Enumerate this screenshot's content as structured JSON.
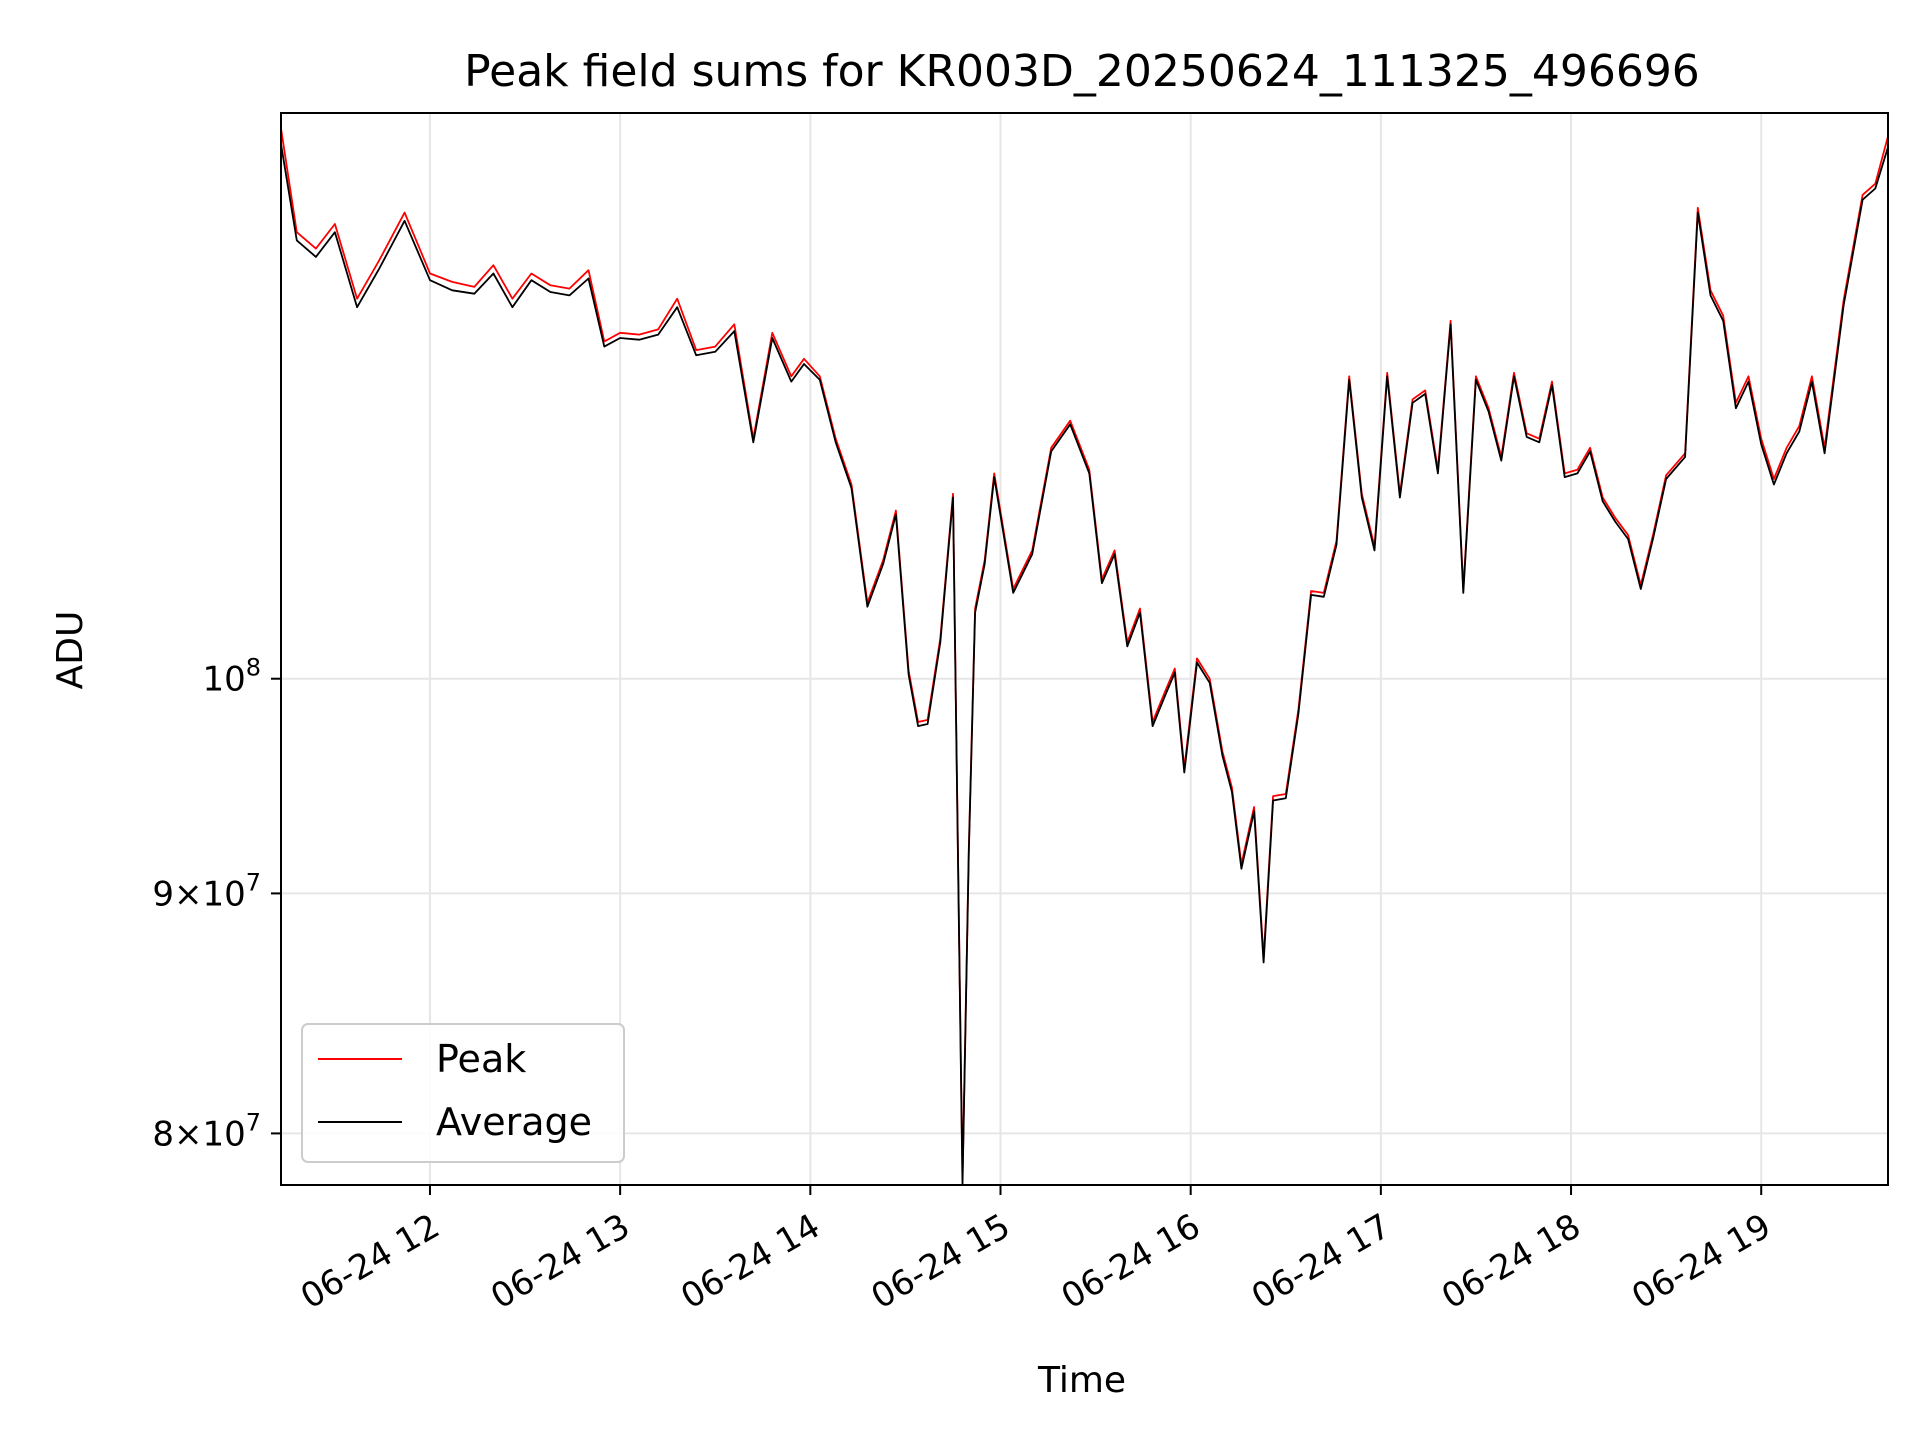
{
  "chart_data": {
    "type": "line",
    "title": "Peak field sums for KR003D_20250624_111325_496696",
    "xlabel": "Time",
    "ylabel": "ADU",
    "y_scale": "log",
    "ylim": [
      78000000,
      132000000
    ],
    "xlim": [
      "2025-06-24 11:13",
      "2025-06-24 19:40"
    ],
    "grid": true,
    "legend_position": "lower-left",
    "x_tick_labels": [
      "06-24 12",
      "06-24 13",
      "06-24 14",
      "06-24 15",
      "06-24 16",
      "06-24 17",
      "06-24 18",
      "06-24 19"
    ],
    "x_ticks": [
      "2025-06-24 12:00",
      "2025-06-24 13:00",
      "2025-06-24 14:00",
      "2025-06-24 15:00",
      "2025-06-24 16:00",
      "2025-06-24 17:00",
      "2025-06-24 18:00",
      "2025-06-24 19:00"
    ],
    "y_ticks": [
      {
        "value": 80000000,
        "mantissa": "8",
        "exponent": "7"
      },
      {
        "value": 90000000,
        "mantissa": "9",
        "exponent": "7"
      },
      {
        "value": 100000000,
        "mantissa": "",
        "exponent": "8"
      }
    ],
    "times_prefix": "2025-06-24",
    "times": [
      "11:13",
      "11:18",
      "11:24",
      "11:30",
      "11:37",
      "11:44",
      "11:52",
      "12:00",
      "12:07",
      "12:14",
      "12:20",
      "12:26",
      "12:32",
      "12:38",
      "12:44",
      "12:50",
      "12:55",
      "13:00",
      "13:06",
      "13:12",
      "13:18",
      "13:24",
      "13:30",
      "13:36",
      "13:42",
      "13:48",
      "13:54",
      "13:58",
      "14:03",
      "14:08",
      "14:13",
      "14:18",
      "14:23",
      "14:27",
      "14:31",
      "14:34",
      "14:37",
      "14:41",
      "14:45",
      "14:48",
      "14:50",
      "14:52",
      "14:55",
      "14:58",
      "15:04",
      "15:10",
      "15:16",
      "15:22",
      "15:28",
      "15:32",
      "15:36",
      "15:40",
      "15:44",
      "15:48",
      "15:52",
      "15:55",
      "15:58",
      "16:02",
      "16:06",
      "16:10",
      "16:13",
      "16:16",
      "16:20",
      "16:23",
      "16:26",
      "16:30",
      "16:34",
      "16:38",
      "16:42",
      "16:46",
      "16:50",
      "16:54",
      "16:58",
      "17:02",
      "17:06",
      "17:10",
      "17:14",
      "17:18",
      "17:22",
      "17:26",
      "17:30",
      "17:34",
      "17:38",
      "17:42",
      "17:46",
      "17:50",
      "17:54",
      "17:58",
      "18:02",
      "18:06",
      "18:10",
      "18:14",
      "18:18",
      "18:22",
      "18:26",
      "18:30",
      "18:36",
      "18:40",
      "18:44",
      "18:48",
      "18:52",
      "18:56",
      "19:00",
      "19:04",
      "19:08",
      "19:12",
      "19:16",
      "19:20",
      "19:26",
      "19:32",
      "19:36",
      "19:40"
    ],
    "series": [
      {
        "name": "Peak",
        "color": "#ff0000",
        "values": [
          131000000,
          124500000,
          123500000,
          125000000,
          120500000,
          122800000,
          125700000,
          122000000,
          121500000,
          121200000,
          122500000,
          120500000,
          122000000,
          121300000,
          121100000,
          122200000,
          118000000,
          118500000,
          118400000,
          118700000,
          120500000,
          117500000,
          117700000,
          119000000,
          112500000,
          118500000,
          116000000,
          117000000,
          116000000,
          112500000,
          110000000,
          103800000,
          106000000,
          108600000,
          100400000,
          97900000,
          98000000,
          102000000,
          109500000,
          78200000,
          92000000,
          103500000,
          106000000,
          110600000,
          104500000,
          106500000,
          112000000,
          113500000,
          110800000,
          105000000,
          106500000,
          101800000,
          103500000,
          97900000,
          99400000,
          100500000,
          95700000,
          101000000,
          100000000,
          96500000,
          94800000,
          91300000,
          93900000,
          87200000,
          94400000,
          94500000,
          98500000,
          104400000,
          104300000,
          107000000,
          116000000,
          109500000,
          106700000,
          116200000,
          109500000,
          114700000,
          115200000,
          110800000,
          119200000,
          104500000,
          116000000,
          114200000,
          111500000,
          116200000,
          112800000,
          112500000,
          115700000,
          110600000,
          110800000,
          112000000,
          109300000,
          108200000,
          107300000,
          104700000,
          107400000,
          110500000,
          111700000,
          126000000,
          121000000,
          119500000,
          114500000,
          116000000,
          112500000,
          110300000,
          112000000,
          113200000,
          116000000,
          112000000,
          120400000,
          126800000,
          127500000,
          130500000
        ]
      },
      {
        "name": "Average",
        "color": "#000000",
        "values": [
          130000000,
          124000000,
          123000000,
          124500000,
          120000000,
          122300000,
          125200000,
          121600000,
          121000000,
          120800000,
          122000000,
          120000000,
          121600000,
          120900000,
          120700000,
          121700000,
          117700000,
          118200000,
          118100000,
          118400000,
          120000000,
          117200000,
          117400000,
          118600000,
          112300000,
          118200000,
          115700000,
          116700000,
          115800000,
          112300000,
          109800000,
          103600000,
          105800000,
          108400000,
          100200000,
          97700000,
          97800000,
          101800000,
          109300000,
          78000000,
          91800000,
          103300000,
          105800000,
          110400000,
          104300000,
          106300000,
          111800000,
          113300000,
          110600000,
          104800000,
          106300000,
          101600000,
          103300000,
          97700000,
          99200000,
          100300000,
          95500000,
          100800000,
          99800000,
          96300000,
          94600000,
          91100000,
          93700000,
          87000000,
          94200000,
          94300000,
          98300000,
          104200000,
          104100000,
          106800000,
          115800000,
          109300000,
          106500000,
          116000000,
          109300000,
          114500000,
          115000000,
          110600000,
          119000000,
          104300000,
          115800000,
          114000000,
          111300000,
          116000000,
          112600000,
          112300000,
          115500000,
          110400000,
          110600000,
          111800000,
          109100000,
          108000000,
          107100000,
          104500000,
          107200000,
          110300000,
          111500000,
          125700000,
          120700000,
          119200000,
          114200000,
          115700000,
          112200000,
          110000000,
          111700000,
          112900000,
          115700000,
          111700000,
          120100000,
          126500000,
          127200000,
          129800000
        ]
      }
    ]
  }
}
